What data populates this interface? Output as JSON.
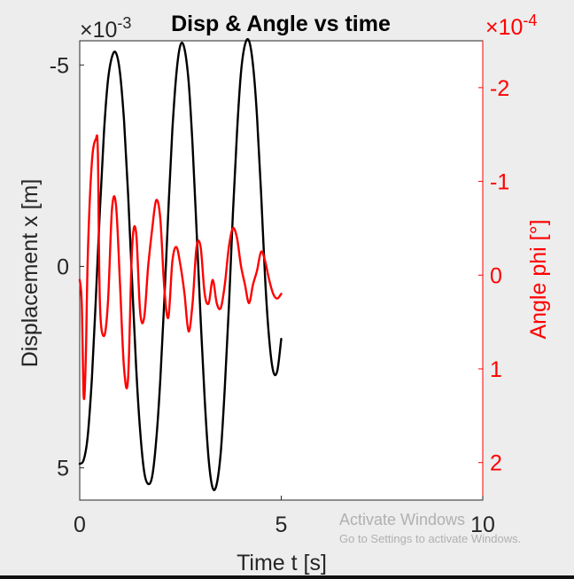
{
  "chart_data": {
    "type": "line",
    "title": "Disp & Angle vs time",
    "xlabel": "Time t [s]",
    "xlim": [
      0,
      10
    ],
    "xticks": [
      0,
      5,
      10
    ],
    "xtick_labels": [
      "0",
      "5",
      "10"
    ],
    "grid": false,
    "legend": "none",
    "left_axis": {
      "label": "Displacement x [m]",
      "exponent_label": "×10",
      "exponent": "-3",
      "reversed": true,
      "range": [
        -5.6,
        5.8
      ],
      "ticks": [
        -5,
        0,
        5
      ],
      "tick_labels": [
        "-5",
        "0",
        "5"
      ],
      "color": "#000000"
    },
    "right_axis": {
      "label": "Angle phi [°]",
      "exponent_label": "×10",
      "exponent": "-4",
      "reversed": true,
      "range": [
        -2.5,
        2.4
      ],
      "ticks": [
        -2,
        -1,
        0,
        1,
        2
      ],
      "tick_labels": [
        "-2",
        "-1",
        "0",
        "1",
        "2"
      ],
      "color": "#ff0000"
    },
    "series": [
      {
        "axis": "left",
        "color": "#000000",
        "x": [
          0,
          0.1,
          0.2,
          0.3,
          0.4,
          0.5,
          0.6,
          0.7,
          0.8,
          0.9,
          1.0,
          1.1,
          1.2,
          1.3,
          1.4,
          1.5,
          1.6,
          1.7,
          1.8,
          1.9,
          2.0,
          2.1,
          2.2,
          2.3,
          2.4,
          2.5,
          2.6,
          2.7,
          2.8,
          2.9,
          3.0,
          3.1,
          3.2,
          3.3,
          3.4,
          3.5,
          3.6,
          3.7,
          3.8,
          3.9,
          4.0,
          4.1,
          4.2,
          4.3,
          4.4,
          4.5,
          4.6,
          4.7,
          4.8,
          4.9,
          5.0
        ],
        "values": [
          4.9,
          4.8,
          4.2,
          2.8,
          0.8,
          -1.4,
          -3.3,
          -4.6,
          -5.2,
          -5.3,
          -4.8,
          -3.6,
          -1.8,
          0.4,
          2.5,
          4.1,
          5.1,
          5.4,
          5.2,
          4.3,
          2.8,
          0.8,
          -1.4,
          -3.4,
          -4.8,
          -5.5,
          -5.4,
          -4.6,
          -3.0,
          -0.9,
          1.3,
          3.3,
          4.8,
          5.5,
          5.4,
          4.6,
          3.0,
          1.0,
          -1.3,
          -3.3,
          -4.8,
          -5.5,
          -5.6,
          -5.0,
          -3.7,
          -1.8,
          0.3,
          1.8,
          2.6,
          2.6,
          1.8
        ]
      },
      {
        "axis": "right",
        "color": "#ff0000",
        "x": [
          0,
          0.05,
          0.1,
          0.15,
          0.2,
          0.3,
          0.4,
          0.45,
          0.5,
          0.6,
          0.7,
          0.8,
          0.9,
          1.0,
          1.1,
          1.2,
          1.3,
          1.4,
          1.5,
          1.6,
          1.7,
          1.8,
          1.9,
          2.0,
          2.1,
          2.2,
          2.3,
          2.4,
          2.5,
          2.6,
          2.7,
          2.8,
          2.9,
          3.0,
          3.1,
          3.2,
          3.3,
          3.4,
          3.5,
          3.6,
          3.7,
          3.8,
          3.9,
          4.0,
          4.1,
          4.2,
          4.3,
          4.4,
          4.5,
          4.6,
          4.7,
          4.8,
          4.9,
          5.0
        ],
        "values": [
          0.05,
          0.3,
          1.3,
          0.9,
          -0.2,
          -1.2,
          -1.45,
          -1.3,
          0.3,
          0.65,
          0.3,
          -0.7,
          -0.75,
          0.1,
          1.0,
          1.1,
          -0.3,
          -0.45,
          0.4,
          0.45,
          -0.1,
          -0.5,
          -0.8,
          -0.6,
          0.15,
          0.45,
          -0.15,
          -0.3,
          -0.1,
          0.2,
          0.6,
          0.3,
          -0.3,
          -0.3,
          0.2,
          0.3,
          0.05,
          0.3,
          0.35,
          0.1,
          -0.3,
          -0.5,
          -0.4,
          -0.1,
          0.1,
          0.3,
          0.1,
          -0.05,
          -0.25,
          -0.15,
          0.05,
          0.2,
          0.25,
          0.2
        ]
      }
    ]
  },
  "watermark": {
    "line1": "Activate Windows",
    "line2": "Go to Settings to activate Windows."
  }
}
